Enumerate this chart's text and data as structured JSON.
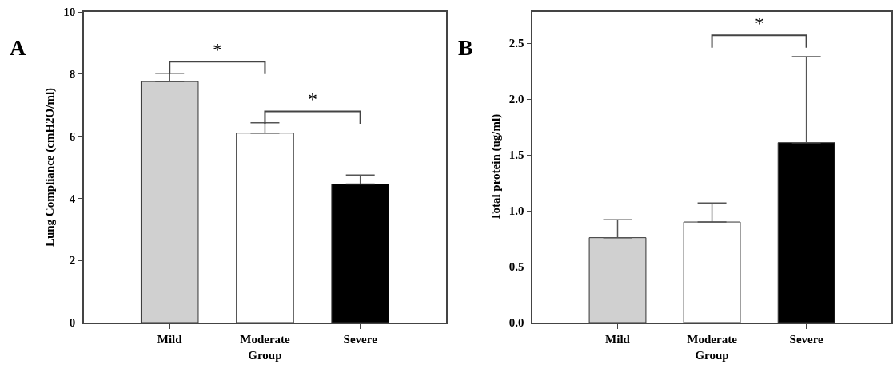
{
  "chart_data": [
    {
      "type": "bar",
      "categories": [
        "Mild",
        "Moderate",
        "Severe"
      ],
      "values": [
        7.76,
        6.1,
        4.46
      ],
      "colors": [
        "#d0d0d0",
        "#ffffff",
        "#000000"
      ],
      "errors": [
        [
          7.76,
          8.03
        ],
        [
          6.1,
          6.43
        ],
        [
          4.46,
          4.75
        ]
      ],
      "xlabel": "Group",
      "ylabel": "Lung Compliance (cmH2O/ml)",
      "ylim": [
        0,
        10
      ],
      "yticks": [
        0,
        2,
        4,
        6,
        8,
        10
      ],
      "annotations": [
        "A",
        "*",
        "*"
      ]
    },
    {
      "type": "bar",
      "categories": [
        "Mild",
        "Moderate",
        "Severe"
      ],
      "values": [
        0.76,
        0.9,
        1.61
      ],
      "colors": [
        "#d0d0d0",
        "#ffffff",
        "#000000"
      ],
      "errors": [
        [
          0.76,
          0.92
        ],
        [
          0.9,
          1.07
        ],
        [
          1.61,
          2.38
        ]
      ],
      "xlabel": "Group",
      "ylabel": "Total protein (ug/ml)",
      "ylim": [
        0,
        2.78
      ],
      "yticks": [
        {
          "value": 0,
          "label": "0.0"
        },
        0.5,
        {
          "value": 1,
          "label": "1.0"
        },
        1.5,
        {
          "value": 2,
          "label": "2.0"
        },
        2.5
      ],
      "annotations": [
        "B",
        "*"
      ]
    }
  ]
}
